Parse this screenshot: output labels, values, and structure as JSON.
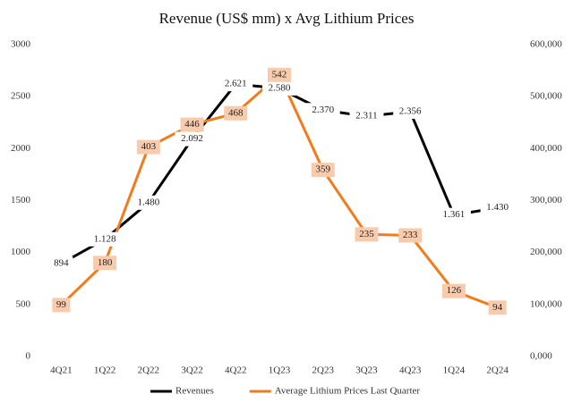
{
  "chart_data": {
    "type": "line",
    "title": "Revenue (US$ mm) x Avg Lithium Prices",
    "categories": [
      "4Q21",
      "1Q22",
      "2Q22",
      "3Q22",
      "4Q22",
      "1Q23",
      "2Q23",
      "3Q23",
      "4Q23",
      "1Q24",
      "2Q24"
    ],
    "series": [
      {
        "name": "Revenues",
        "color": "#000000",
        "axis": "y",
        "values": [
          894,
          1128,
          1480,
          2092,
          2621,
          2580,
          2370,
          2311,
          2356,
          1361,
          1430
        ],
        "value_labels": [
          "894",
          "1.128",
          "1.480",
          "2.092",
          "2.621",
          "2.580",
          "2.370",
          "2.311",
          "2.356",
          "1.361",
          "1.430"
        ]
      },
      {
        "name": "Average Lithium Prices Last Quarter",
        "color": "#f07c1a",
        "axis": "y2",
        "values": [
          99000,
          180000,
          403000,
          446000,
          468000,
          542000,
          359000,
          235000,
          233000,
          126000,
          94000
        ],
        "value_labels": [
          "99",
          "180",
          "403",
          "446",
          "468",
          "542",
          "359",
          "235",
          "233",
          "126",
          "94"
        ]
      }
    ],
    "ylim": [
      0,
      3000
    ],
    "yticks": [
      0,
      500,
      1000,
      1500,
      2000,
      2500,
      3000
    ],
    "y2lim": [
      0,
      600000
    ],
    "y2ticks": [
      {
        "value": 0,
        "label": "0,000"
      },
      {
        "value": 100000,
        "label": "100,000"
      },
      {
        "value": 200000,
        "label": "200,000"
      },
      {
        "value": 300000,
        "label": "300,000"
      },
      {
        "value": 400000,
        "label": "400,000"
      },
      {
        "value": 500000,
        "label": "500,000"
      },
      {
        "value": 600000,
        "label": "600,000"
      }
    ],
    "grid": false,
    "legend": "bottom"
  }
}
